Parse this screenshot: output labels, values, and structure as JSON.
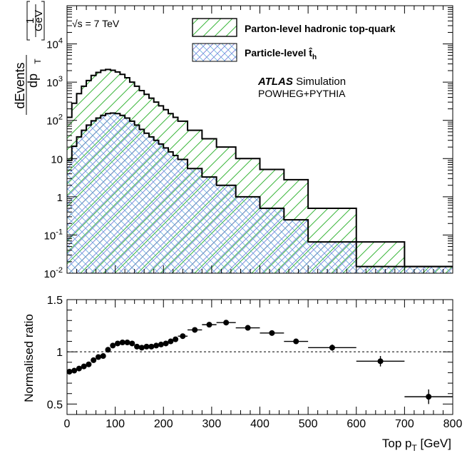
{
  "chart_data": [
    {
      "type": "area",
      "ylabel_main": "dEvents",
      "ylabel_sub": "dp",
      "ylabel_sub_subscript": "T",
      "ylabel_unit_num": "1",
      "ylabel_unit_den": "GeV",
      "annotation_energy_sqrt": "√s",
      "annotation_energy_value": " = 7 TeV",
      "atlas_label": "ATLAS",
      "atlas_suffix": "Simulation",
      "generator_label": "POWHEG+PYTHIA",
      "log_scale": true,
      "xlim": [
        0,
        800
      ],
      "ylim": [
        0.01,
        100000
      ],
      "yticks": [
        {
          "value": 0.01,
          "base": "10",
          "exp": "-2"
        },
        {
          "value": 0.1,
          "base": "10",
          "exp": "-1"
        },
        {
          "value": 1,
          "base": "1",
          "exp": ""
        },
        {
          "value": 10,
          "base": "10",
          "exp": ""
        },
        {
          "value": 100,
          "base": "10",
          "exp": "2"
        },
        {
          "value": 1000,
          "base": "10",
          "exp": "3"
        },
        {
          "value": 10000,
          "base": "10",
          "exp": "4"
        }
      ],
      "legend": [
        {
          "label": "Parton-level hadronic top-quark",
          "hatch": "diagonal",
          "color": "#3cb63c"
        },
        {
          "label": "Particle-level t̂",
          "label_subscript": "h",
          "hatch": "cross",
          "color": "#7b7bd8"
        }
      ],
      "bin_edges": [
        0,
        10,
        20,
        30,
        40,
        50,
        60,
        70,
        80,
        90,
        100,
        110,
        120,
        130,
        140,
        150,
        160,
        170,
        180,
        190,
        200,
        210,
        220,
        230,
        250,
        280,
        310,
        350,
        400,
        450,
        500,
        600,
        700,
        800
      ],
      "series": [
        {
          "name": "Parton-level hadronic top-quark",
          "values": [
            120,
            280,
            500,
            780,
            1100,
            1500,
            1800,
            2050,
            2150,
            2050,
            1850,
            1600,
            1300,
            1000,
            780,
            600,
            480,
            380,
            300,
            240,
            190,
            150,
            120,
            95,
            55,
            33,
            20,
            10,
            5.2,
            2.8,
            0.5,
            0.066,
            0.015
          ]
        },
        {
          "name": "Particle-level t̂",
          "values": [
            9,
            21,
            37,
            55,
            75,
            97,
            115,
            135,
            150,
            155,
            150,
            135,
            115,
            95,
            75,
            58,
            46,
            37,
            30,
            24,
            19,
            15,
            12,
            9.5,
            5.5,
            3.3,
            2,
            1,
            0.5,
            0.25,
            0.066,
            0.015,
            0.015
          ]
        }
      ]
    },
    {
      "type": "scatter",
      "xlabel": "Top p",
      "xlabel_subscript": "T",
      "xlabel_unit": " [GeV]",
      "ylabel": "Normalised ratio",
      "xlim": [
        0,
        800
      ],
      "ylim": [
        0.4,
        1.5
      ],
      "xticks": [
        0,
        100,
        200,
        300,
        400,
        500,
        600,
        700,
        800
      ],
      "yticks": [
        0.5,
        1,
        1.5
      ],
      "ytick_labels": [
        "0.5",
        "1",
        "1.5"
      ],
      "reference_line": 1,
      "points": [
        {
          "x": 5,
          "y": 0.81,
          "xerr": 5,
          "yerr": 0.015
        },
        {
          "x": 15,
          "y": 0.82,
          "xerr": 5,
          "yerr": 0.015
        },
        {
          "x": 25,
          "y": 0.84,
          "xerr": 5,
          "yerr": 0.015
        },
        {
          "x": 35,
          "y": 0.86,
          "xerr": 5,
          "yerr": 0.015
        },
        {
          "x": 45,
          "y": 0.88,
          "xerr": 5,
          "yerr": 0.015
        },
        {
          "x": 55,
          "y": 0.92,
          "xerr": 5,
          "yerr": 0.015
        },
        {
          "x": 65,
          "y": 0.95,
          "xerr": 5,
          "yerr": 0.015
        },
        {
          "x": 75,
          "y": 0.96,
          "xerr": 5,
          "yerr": 0.015
        },
        {
          "x": 85,
          "y": 1.02,
          "xerr": 5,
          "yerr": 0.015
        },
        {
          "x": 95,
          "y": 1.06,
          "xerr": 5,
          "yerr": 0.015
        },
        {
          "x": 105,
          "y": 1.08,
          "xerr": 5,
          "yerr": 0.015
        },
        {
          "x": 115,
          "y": 1.09,
          "xerr": 5,
          "yerr": 0.015
        },
        {
          "x": 125,
          "y": 1.09,
          "xerr": 5,
          "yerr": 0.015
        },
        {
          "x": 135,
          "y": 1.08,
          "xerr": 5,
          "yerr": 0.015
        },
        {
          "x": 145,
          "y": 1.05,
          "xerr": 5,
          "yerr": 0.015
        },
        {
          "x": 155,
          "y": 1.04,
          "xerr": 5,
          "yerr": 0.015
        },
        {
          "x": 165,
          "y": 1.05,
          "xerr": 5,
          "yerr": 0.015
        },
        {
          "x": 175,
          "y": 1.05,
          "xerr": 5,
          "yerr": 0.015
        },
        {
          "x": 185,
          "y": 1.06,
          "xerr": 5,
          "yerr": 0.015
        },
        {
          "x": 195,
          "y": 1.07,
          "xerr": 5,
          "yerr": 0.015
        },
        {
          "x": 205,
          "y": 1.08,
          "xerr": 5,
          "yerr": 0.015
        },
        {
          "x": 215,
          "y": 1.1,
          "xerr": 5,
          "yerr": 0.015
        },
        {
          "x": 225,
          "y": 1.12,
          "xerr": 5,
          "yerr": 0.015
        },
        {
          "x": 240,
          "y": 1.15,
          "xerr": 10,
          "yerr": 0.015
        },
        {
          "x": 265,
          "y": 1.21,
          "xerr": 15,
          "yerr": 0.015
        },
        {
          "x": 295,
          "y": 1.26,
          "xerr": 15,
          "yerr": 0.015
        },
        {
          "x": 330,
          "y": 1.28,
          "xerr": 20,
          "yerr": 0.015
        },
        {
          "x": 375,
          "y": 1.23,
          "xerr": 25,
          "yerr": 0.015
        },
        {
          "x": 425,
          "y": 1.18,
          "xerr": 25,
          "yerr": 0.015
        },
        {
          "x": 475,
          "y": 1.1,
          "xerr": 25,
          "yerr": 0.02
        },
        {
          "x": 550,
          "y": 1.04,
          "xerr": 50,
          "yerr": 0.03
        },
        {
          "x": 650,
          "y": 0.91,
          "xerr": 50,
          "yerr": 0.05
        },
        {
          "x": 750,
          "y": 0.57,
          "xerr": 50,
          "yerr": 0.07
        }
      ]
    }
  ]
}
